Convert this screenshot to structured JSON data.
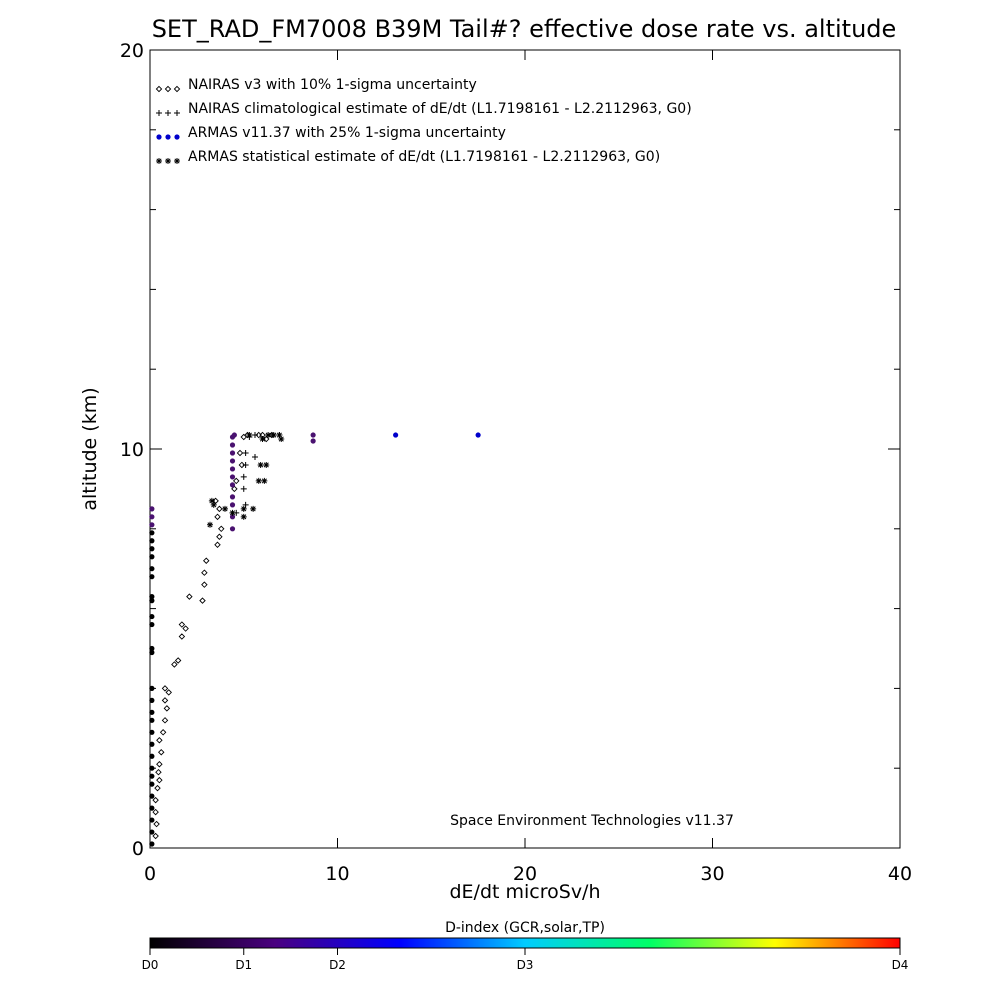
{
  "chart_data": {
    "type": "scatter",
    "title": "SET_RAD_FM7008  B39M Tail#? effective dose rate vs. altitude",
    "xlabel": "dE/dt microSv/h",
    "ylabel": "altitude (km)",
    "xlim": [
      0,
      40
    ],
    "ylim": [
      0,
      20
    ],
    "x_ticks": [
      0,
      10,
      20,
      30,
      40
    ],
    "x_tick_labels": [
      "0",
      "10",
      "20",
      "30",
      "40"
    ],
    "y_ticks": [
      0,
      10,
      20
    ],
    "y_tick_labels": [
      "0",
      "10",
      "20"
    ],
    "y_minor_ticks": [
      2,
      4,
      6,
      8,
      12,
      14,
      16,
      18
    ],
    "grid": false,
    "legend_position": "top-left",
    "credit": "Space Environment Technologies v11.37",
    "series": [
      {
        "name": "NAIRAS v3 with 10% 1-sigma uncertainty",
        "marker": "diamond",
        "color": "#000000",
        "points": [
          [
            0.3,
            0.3
          ],
          [
            0.35,
            0.6
          ],
          [
            0.3,
            0.9
          ],
          [
            0.3,
            1.2
          ],
          [
            0.4,
            1.5
          ],
          [
            0.5,
            1.7
          ],
          [
            0.45,
            1.9
          ],
          [
            0.5,
            2.1
          ],
          [
            0.6,
            2.4
          ],
          [
            0.5,
            2.7
          ],
          [
            0.7,
            2.9
          ],
          [
            0.8,
            3.2
          ],
          [
            0.9,
            3.5
          ],
          [
            0.8,
            3.7
          ],
          [
            1.0,
            3.9
          ],
          [
            0.8,
            4.0
          ],
          [
            1.3,
            4.6
          ],
          [
            1.5,
            4.7
          ],
          [
            1.7,
            5.3
          ],
          [
            1.9,
            5.5
          ],
          [
            1.7,
            5.6
          ],
          [
            2.1,
            6.3
          ],
          [
            2.8,
            6.2
          ],
          [
            2.9,
            6.6
          ],
          [
            2.9,
            6.9
          ],
          [
            3.0,
            7.2
          ],
          [
            3.6,
            7.6
          ],
          [
            3.7,
            7.8
          ],
          [
            3.8,
            8.0
          ],
          [
            3.6,
            8.3
          ],
          [
            3.7,
            8.5
          ],
          [
            3.5,
            8.7
          ],
          [
            4.5,
            9.0
          ],
          [
            4.6,
            9.2
          ],
          [
            4.9,
            9.6
          ],
          [
            4.8,
            9.9
          ],
          [
            5.0,
            10.3
          ],
          [
            5.2,
            10.35
          ],
          [
            5.8,
            10.35
          ],
          [
            6.0,
            10.35
          ],
          [
            6.2,
            10.25
          ],
          [
            6.5,
            10.35
          ]
        ]
      },
      {
        "name": "NAIRAS climatological estimate of dE/dt (L1.7198161 - L2.2112963, G0)",
        "marker": "plus",
        "color": "#000000",
        "points": [
          [
            4.6,
            8.4
          ],
          [
            5.1,
            8.6
          ],
          [
            5.0,
            9.0
          ],
          [
            5.0,
            9.3
          ],
          [
            5.1,
            9.6
          ],
          [
            5.1,
            9.9
          ],
          [
            5.6,
            9.8
          ],
          [
            5.3,
            10.3
          ],
          [
            5.6,
            10.35
          ],
          [
            6.5,
            10.35
          ],
          [
            6.9,
            10.35
          ]
        ]
      },
      {
        "name": "ARMAS v11.37 with 25% 1-sigma uncertainty",
        "marker": "circle",
        "color": "#0000cc",
        "points": [
          [
            0.1,
            0.1
          ],
          [
            0.1,
            0.4
          ],
          [
            0.1,
            0.7
          ],
          [
            0.1,
            1.0
          ],
          [
            0.1,
            1.3
          ],
          [
            0.1,
            1.6
          ],
          [
            0.1,
            1.8
          ],
          [
            0.1,
            2.0
          ],
          [
            0.1,
            2.3
          ],
          [
            0.1,
            2.6
          ],
          [
            0.1,
            2.9
          ],
          [
            0.1,
            3.2
          ],
          [
            0.1,
            3.4
          ],
          [
            0.1,
            3.7
          ],
          [
            0.1,
            4.0
          ],
          [
            0.1,
            4.9
          ],
          [
            0.1,
            5.0
          ],
          [
            0.1,
            5.6
          ],
          [
            0.1,
            5.8
          ],
          [
            0.1,
            6.2
          ],
          [
            0.1,
            6.3
          ],
          [
            0.1,
            6.8
          ],
          [
            0.1,
            7.0
          ],
          [
            0.1,
            7.3
          ],
          [
            0.1,
            7.5
          ],
          [
            0.1,
            7.7
          ],
          [
            0.1,
            7.9
          ],
          [
            0.1,
            8.1
          ],
          [
            0.1,
            8.3
          ],
          [
            0.1,
            8.5
          ],
          [
            4.4,
            8.0
          ],
          [
            4.4,
            8.3
          ],
          [
            4.4,
            8.6
          ],
          [
            4.4,
            8.8
          ],
          [
            4.4,
            9.1
          ],
          [
            4.4,
            9.3
          ],
          [
            4.4,
            9.5
          ],
          [
            4.4,
            9.7
          ],
          [
            4.4,
            9.9
          ],
          [
            4.4,
            10.1
          ],
          [
            4.4,
            10.3
          ],
          [
            4.5,
            10.35
          ],
          [
            8.7,
            10.2
          ],
          [
            8.7,
            10.35
          ],
          [
            13.1,
            10.35
          ],
          [
            17.5,
            10.35
          ]
        ]
      },
      {
        "name": "ARMAS statistical estimate of dE/dt (L1.7198161 - L2.2112963, G0)",
        "marker": "asterisk",
        "color": "#000000",
        "points": [
          [
            3.2,
            8.1
          ],
          [
            3.4,
            8.6
          ],
          [
            3.3,
            8.7
          ],
          [
            4.0,
            8.5
          ],
          [
            4.4,
            8.4
          ],
          [
            5.0,
            8.3
          ],
          [
            5.0,
            8.5
          ],
          [
            5.5,
            8.5
          ],
          [
            5.8,
            9.2
          ],
          [
            5.9,
            9.6
          ],
          [
            6.2,
            9.6
          ],
          [
            6.1,
            9.2
          ],
          [
            6.0,
            10.25
          ],
          [
            6.3,
            10.35
          ],
          [
            6.6,
            10.35
          ],
          [
            6.9,
            10.35
          ],
          [
            7.0,
            10.25
          ],
          [
            5.3,
            10.35
          ]
        ]
      }
    ],
    "colorbar": {
      "title": "D-index (GCR,solar,TP)",
      "labels": [
        "D0",
        "D1",
        "D2",
        "D3",
        "D4"
      ],
      "label_positions": [
        0,
        0.125,
        0.25,
        0.5,
        1.0
      ],
      "colors": [
        "#000000",
        "#4a0080",
        "#0000ff",
        "#00ccff",
        "#00ff66",
        "#ffff00",
        "#ff0000"
      ]
    }
  }
}
